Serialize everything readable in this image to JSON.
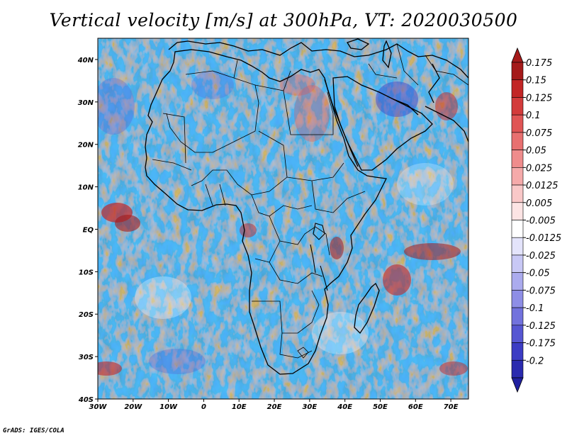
{
  "title": "Vertical velocity [m/s] at 300hPa, VT: 2020030500",
  "footer": "GrADS: IGES/COLA",
  "map": {
    "lon_range": [
      -30,
      75
    ],
    "lat_range": [
      -40,
      45
    ],
    "lat_ticks": [
      {
        "value": 40,
        "label": "40N"
      },
      {
        "value": 30,
        "label": "30N"
      },
      {
        "value": 20,
        "label": "20N"
      },
      {
        "value": 10,
        "label": "10N"
      },
      {
        "value": 0,
        "label": "EQ"
      },
      {
        "value": -10,
        "label": "10S"
      },
      {
        "value": -20,
        "label": "20S"
      },
      {
        "value": -30,
        "label": "30S"
      },
      {
        "value": -40,
        "label": "40S"
      }
    ],
    "lon_ticks": [
      {
        "value": -30,
        "label": "30W"
      },
      {
        "value": -20,
        "label": "20W"
      },
      {
        "value": -10,
        "label": "10W"
      },
      {
        "value": 0,
        "label": "0"
      },
      {
        "value": 10,
        "label": "10E"
      },
      {
        "value": 20,
        "label": "20E"
      },
      {
        "value": 30,
        "label": "30E"
      },
      {
        "value": 40,
        "label": "40E"
      },
      {
        "value": 50,
        "label": "50E"
      },
      {
        "value": 60,
        "label": "60E"
      },
      {
        "value": 70,
        "label": "70E"
      }
    ]
  },
  "colorbar": {
    "levels": [
      {
        "label": "0.175",
        "color": "#a51a1a"
      },
      {
        "label": "0.15",
        "color": "#c22626"
      },
      {
        "label": "0.125",
        "color": "#d33b3b"
      },
      {
        "label": "0.1",
        "color": "#e05555"
      },
      {
        "label": "0.075",
        "color": "#e87070"
      },
      {
        "label": "0.05",
        "color": "#ef8c8c"
      },
      {
        "label": "0.025",
        "color": "#f5aaaa"
      },
      {
        "label": "0.0125",
        "color": "#f9c8c8"
      },
      {
        "label": "0.005",
        "color": "#fce4e4"
      },
      {
        "label": "-0.005",
        "color": "#ffffff"
      },
      {
        "label": "-0.0125",
        "color": "#e4e4fb"
      },
      {
        "label": "-0.025",
        "color": "#c8c8f5"
      },
      {
        "label": "-0.05",
        "color": "#ababee"
      },
      {
        "label": "-0.075",
        "color": "#8e8ee6"
      },
      {
        "label": "-0.1",
        "color": "#7272dd"
      },
      {
        "label": "-0.125",
        "color": "#5656d2"
      },
      {
        "label": "-0.175",
        "color": "#3c3cc4"
      },
      {
        "label": "-0.2",
        "color": "#2a2aaf"
      }
    ],
    "top_cap_color": "#a51a1a",
    "bottom_cap_color": "#2020a0"
  }
}
